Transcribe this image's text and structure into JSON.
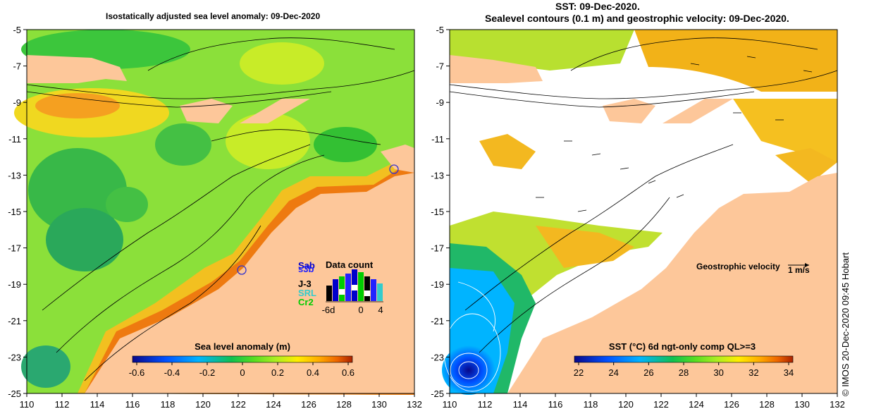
{
  "titles": {
    "left": "Isostatically adjusted sea level anomaly: 09-Dec-2020",
    "right_line1": "SST: 09-Dec-2020.",
    "right_line2": "Sealevel contours (0.1 m) and geostrophic velocity: 09-Dec-2020."
  },
  "axes": {
    "x_ticks": [
      "110",
      "112",
      "114",
      "116",
      "118",
      "120",
      "122",
      "124",
      "126",
      "128",
      "130",
      "132"
    ],
    "y_ticks": [
      "-5",
      "-7",
      "-9",
      "-11",
      "-13",
      "-15",
      "-17",
      "-19",
      "-21",
      "-23",
      "-25"
    ]
  },
  "left_colorbar": {
    "label": "Sea level anomaly (m)",
    "ticks": [
      "-0.6",
      "-0.4",
      "-0.2",
      "0",
      "0.2",
      "0.4",
      "0.6"
    ]
  },
  "right_colorbar": {
    "label": "SST (°C) 6d ngt-only comp QL>=3",
    "ticks": [
      "22",
      "24",
      "26",
      "28",
      "30",
      "32",
      "34"
    ]
  },
  "data_count": {
    "title": "Data count",
    "satellites": [
      "Sab",
      "s3b",
      "J-3",
      "SRL",
      "Cr2"
    ],
    "satellite_colors": [
      "#0000cc",
      "#2222ff",
      "#000000",
      "#33cccc",
      "#00cc00"
    ],
    "x_ticks": [
      "-6d",
      "0",
      "4"
    ]
  },
  "velocity_legend": {
    "label": "Geostrophic velocity",
    "unit": "1 m/s"
  },
  "credit": "© IMOS 20-Dec-2020 09:45 Hobart",
  "colors": {
    "land": "#fdc79a",
    "sla_gradient": [
      "#08088a",
      "#0050ff",
      "#00b4ff",
      "#10c050",
      "#55dd22",
      "#aaee22",
      "#ffee00",
      "#ffaa00",
      "#ee6600",
      "#aa2200"
    ],
    "sst_gradient": [
      "#08088a",
      "#0050ff",
      "#00b4ff",
      "#10c050",
      "#55dd22",
      "#aaee22",
      "#ffee00",
      "#ffaa00",
      "#ee6600",
      "#aa2200"
    ]
  }
}
